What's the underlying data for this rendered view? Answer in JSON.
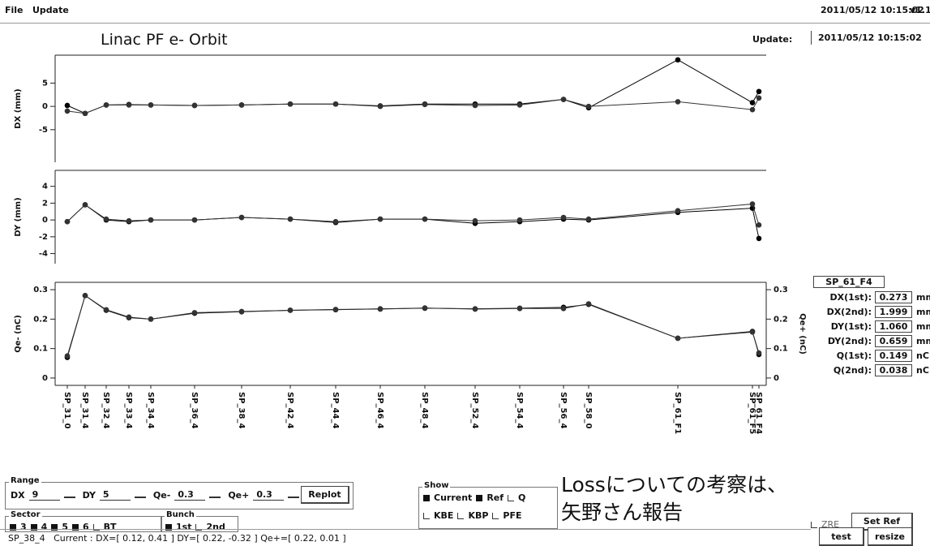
{
  "menu": [
    "File",
    "Update"
  ],
  "header": {
    "timestamp": "2011/05/12 10:15:02",
    "version": "v1.1",
    "title": "Linac PF e- Orbit",
    "update_label": "Update:",
    "update_value": "2011/05/12 10:15:02"
  },
  "chart_data": [
    {
      "type": "line",
      "ylabel": "DX (mm)",
      "ylim": [
        -12,
        11
      ],
      "yticks": [
        -5,
        0,
        5
      ],
      "series": [
        {
          "color": "#000000",
          "values": [
            0.2,
            -1.5,
            0.3,
            0.4,
            0.3,
            0.2,
            0.3,
            0.5,
            0.5,
            0.1,
            0.5,
            0.5,
            0.5,
            1.5,
            -0.3,
            10,
            0.8,
            3.2
          ]
        },
        {
          "color": "#333333",
          "values": [
            -1.0,
            -1.5,
            0.3,
            0.3,
            0.3,
            0.2,
            0.3,
            0.5,
            0.5,
            0.0,
            0.4,
            0.2,
            0.3,
            1.5,
            0.0,
            1.0,
            -0.7,
            1.8
          ]
        }
      ]
    },
    {
      "type": "line",
      "ylabel": "DY (mm)",
      "ylim": [
        -5.2,
        5.9
      ],
      "yticks": [
        -4,
        -2,
        0,
        2,
        4
      ],
      "series": [
        {
          "color": "#000000",
          "values": [
            -0.2,
            1.8,
            0.0,
            -0.2,
            0.0,
            0.0,
            0.3,
            0.1,
            -0.3,
            0.1,
            0.1,
            -0.4,
            -0.2,
            0.1,
            0.0,
            0.9,
            1.4,
            -2.2
          ]
        },
        {
          "color": "#333333",
          "values": [
            -0.2,
            1.8,
            0.1,
            -0.1,
            0.0,
            0.0,
            0.3,
            0.1,
            -0.2,
            0.1,
            0.1,
            -0.1,
            0.0,
            0.3,
            0.1,
            1.1,
            1.9,
            -0.6
          ]
        }
      ]
    },
    {
      "type": "line",
      "ylabel": "Qe- (nC)",
      "y2label": "Qe+ (nC)",
      "ylim": [
        -0.025,
        0.325
      ],
      "yticks": [
        0,
        0.1,
        0.2,
        0.3
      ],
      "y2lim": [
        -0.025,
        0.325
      ],
      "y2ticks": [
        0,
        0.1,
        0.2,
        0.3
      ],
      "categories": [
        "SP_31_0",
        "SP_31_4",
        "SP_32_4",
        "SP_33_4",
        "SP_34_4",
        "SP_36_4",
        "SP_38_4",
        "SP_42_4",
        "SP_44_4",
        "SP_46_4",
        "SP_48_4",
        "SP_52_4",
        "SP_54_4",
        "SP_56_4",
        "SP_58_0",
        "SP_61_F1",
        "SP_61_F5",
        "SP_61_F4"
      ],
      "series": [
        {
          "color": "#000000",
          "values": [
            0.07,
            0.28,
            0.23,
            0.205,
            0.2,
            0.22,
            0.225,
            0.23,
            0.232,
            0.235,
            0.237,
            0.235,
            0.237,
            0.24,
            0.25,
            0.135,
            0.158,
            0.08
          ]
        },
        {
          "color": "#333333",
          "axis": "y2",
          "values": [
            0.075,
            0.28,
            0.232,
            0.207,
            0.2,
            0.222,
            0.226,
            0.23,
            0.233,
            0.234,
            0.238,
            0.234,
            0.236,
            0.236,
            0.252,
            0.135,
            0.156,
            0.085
          ]
        }
      ]
    }
  ],
  "info": {
    "title": "SP_61_F4",
    "rows": [
      {
        "label": "DX(1st):",
        "value": "0.273",
        "unit": "mm"
      },
      {
        "label": "DX(2nd):",
        "value": "1.999",
        "unit": "mm"
      },
      {
        "label": "DY(1st):",
        "value": "1.060",
        "unit": "mm"
      },
      {
        "label": "DY(2nd):",
        "value": "0.659",
        "unit": "mm"
      },
      {
        "label": "Q(1st):",
        "value": "0.149",
        "unit": "nC"
      },
      {
        "label": "Q(2nd):",
        "value": "0.038",
        "unit": "nC"
      }
    ]
  },
  "range": {
    "title": "Range",
    "fields": [
      {
        "label": "DX",
        "value": "9"
      },
      {
        "label": "DY",
        "value": "5"
      },
      {
        "label": "Qe-",
        "value": "0.3"
      },
      {
        "label": "Qe+",
        "value": "0.3"
      }
    ],
    "button": "Replot"
  },
  "sector": {
    "title": "Sector",
    "options": [
      {
        "label": "3",
        "checked": true
      },
      {
        "label": "4",
        "checked": true
      },
      {
        "label": "5",
        "checked": true
      },
      {
        "label": "6",
        "checked": true
      },
      {
        "label": "BT",
        "checked": false
      }
    ]
  },
  "bunch": {
    "title": "Bunch",
    "options": [
      {
        "label": "1st",
        "checked": true
      },
      {
        "label": "2nd",
        "checked": false
      }
    ]
  },
  "show": {
    "title": "Show",
    "options": [
      {
        "label": "Current",
        "checked": true
      },
      {
        "label": "Ref",
        "checked": true
      },
      {
        "label": "Q",
        "checked": false
      },
      {
        "label": "KBE",
        "checked": false
      },
      {
        "label": "KBP",
        "checked": false
      },
      {
        "label": "PFE",
        "checked": false
      }
    ]
  },
  "note": [
    "Lossについての考察は、",
    "矢野さん報告"
  ],
  "buttons": {
    "zre": {
      "label": "ZRE",
      "checked": false
    },
    "set_ref": "Set Ref",
    "test": "test",
    "resize": "resize"
  },
  "status": "SP_38_4   Current : DX=[ 0.12, 0.41 ] DY=[ 0.22, -0.32 ] Qe+=[ 0.22, 0.01 ]"
}
